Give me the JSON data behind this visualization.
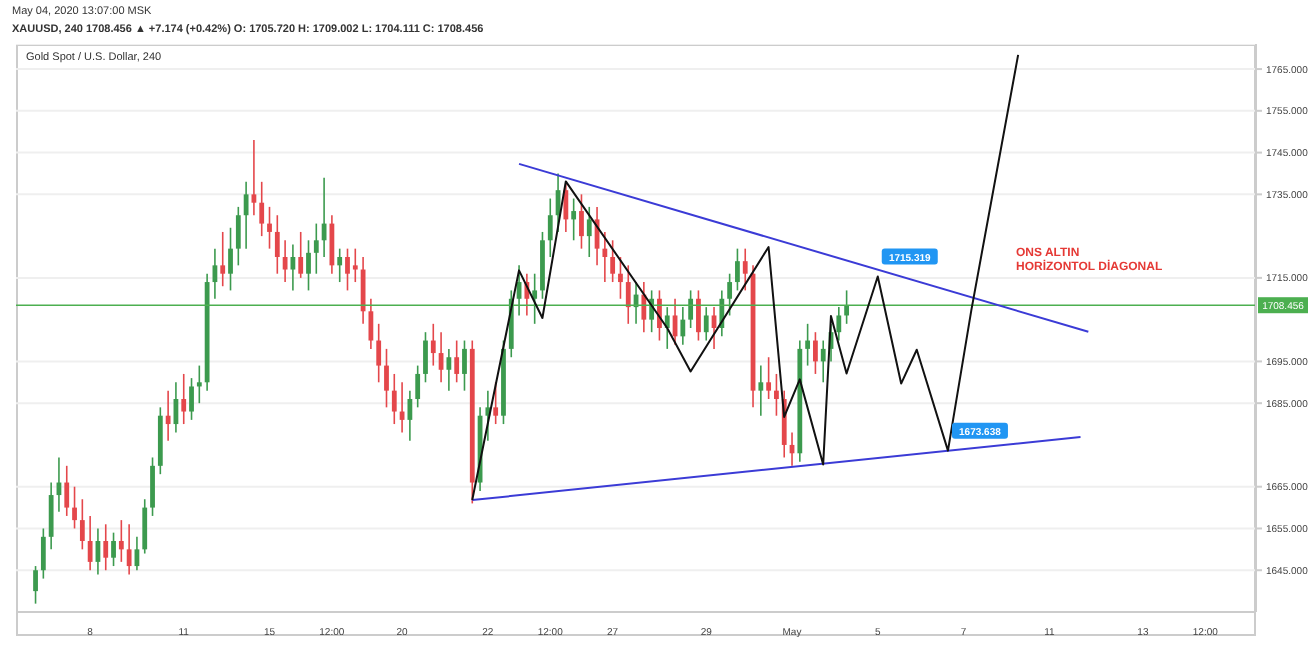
{
  "chart_data": {
    "type": "candlestick",
    "title": "Gold Spot / U.S. Dollar, 240",
    "annotations": [
      "May 04, 2020 13:07:00 MSK",
      "XAUUSD, 240 1708.456 ▲ +7.174 (+0.42%) O: 1705.720 H: 1709.002 L: 1704.111 C: 1708.456",
      "ONS ALTIN\nHORİZONTOL DİAGONAL",
      {
        "text": "1715.319",
        "y": 1715.319
      },
      {
        "text": "1673.638",
        "y": 1673.638
      }
    ],
    "categories": [
      null,
      null,
      null,
      null,
      null,
      null,
      null,
      null,
      null,
      "8",
      null,
      null,
      null,
      null,
      null,
      null,
      null,
      null,
      null,
      null,
      null,
      "11",
      null,
      null,
      null,
      null,
      null,
      null,
      null,
      null,
      null,
      null,
      "15",
      null,
      null,
      null,
      null,
      null,
      null,
      null,
      "12:00",
      null,
      null,
      null,
      null,
      null,
      null,
      null,
      null,
      "20",
      null,
      null,
      null,
      null,
      null,
      null,
      null,
      null,
      null,
      null,
      "22",
      null,
      null,
      null,
      null,
      null,
      null,
      null,
      "12:00",
      null,
      null,
      null,
      null,
      null,
      null,
      null,
      "27",
      null,
      null,
      null,
      null,
      null,
      null,
      null,
      null,
      null,
      null,
      null,
      "29",
      null,
      null,
      null,
      null,
      null,
      null,
      null,
      null,
      null,
      null,
      "May",
      null,
      null,
      null,
      null,
      null,
      null,
      null,
      null,
      null,
      null,
      "5",
      null,
      null,
      null,
      null,
      null,
      null,
      null,
      null,
      null,
      null,
      "7",
      null,
      null,
      null,
      null,
      null,
      null,
      null,
      null,
      null,
      null,
      "11",
      null,
      null,
      null,
      null,
      null,
      null,
      null,
      null,
      null,
      null,
      null,
      "13",
      null,
      null,
      null,
      null,
      null,
      null,
      null,
      "12:00",
      null,
      null,
      null,
      null,
      null,
      null
    ],
    "ohlc": [
      null,
      null,
      [
        1640,
        1646,
        1637,
        1645
      ],
      [
        1645,
        1655,
        1643,
        1653
      ],
      [
        1653,
        1666,
        1650,
        1663
      ],
      [
        1663,
        1672,
        1659,
        1666
      ],
      [
        1666,
        1670,
        1658,
        1660
      ],
      [
        1660,
        1665,
        1655,
        1657
      ],
      [
        1657,
        1662,
        1650,
        1652
      ],
      [
        1652,
        1658,
        1645,
        1647
      ],
      [
        1647,
        1655,
        1644,
        1652
      ],
      [
        1652,
        1656,
        1645,
        1648
      ],
      [
        1648,
        1654,
        1646,
        1652
      ],
      [
        1652,
        1657,
        1647,
        1650
      ],
      [
        1650,
        1656,
        1644,
        1646
      ],
      [
        1646,
        1653,
        1645,
        1650
      ],
      [
        1650,
        1662,
        1649,
        1660
      ],
      [
        1660,
        1672,
        1658,
        1670
      ],
      [
        1670,
        1684,
        1668,
        1682
      ],
      [
        1682,
        1688,
        1676,
        1680
      ],
      [
        1680,
        1690,
        1678,
        1686
      ],
      [
        1686,
        1692,
        1680,
        1683
      ],
      [
        1683,
        1691,
        1681,
        1689
      ],
      [
        1689,
        1694,
        1685,
        1690
      ],
      [
        1690,
        1716,
        1688,
        1714
      ],
      [
        1714,
        1722,
        1710,
        1718
      ],
      [
        1718,
        1726,
        1713,
        1716
      ],
      [
        1716,
        1727,
        1712,
        1722
      ],
      [
        1722,
        1732,
        1718,
        1730
      ],
      [
        1730,
        1738,
        1722,
        1735
      ],
      [
        1735,
        1748,
        1730,
        1733
      ],
      [
        1733,
        1738,
        1725,
        1728
      ],
      [
        1728,
        1732,
        1722,
        1726
      ],
      [
        1726,
        1730,
        1716,
        1720
      ],
      [
        1720,
        1724,
        1714,
        1717
      ],
      [
        1717,
        1723,
        1712,
        1720
      ],
      [
        1720,
        1726,
        1715,
        1716
      ],
      [
        1716,
        1724,
        1712,
        1721
      ],
      [
        1721,
        1728,
        1716,
        1724
      ],
      [
        1724,
        1739,
        1720,
        1728
      ],
      [
        1728,
        1730,
        1716,
        1718
      ],
      [
        1718,
        1722,
        1714,
        1720
      ],
      [
        1720,
        1722,
        1712,
        1716
      ],
      [
        1718,
        1722,
        1714,
        1717
      ],
      [
        1717,
        1720,
        1704,
        1707
      ],
      [
        1707,
        1710,
        1698,
        1700
      ],
      [
        1700,
        1704,
        1690,
        1694
      ],
      [
        1694,
        1698,
        1684,
        1688
      ],
      [
        1688,
        1692,
        1680,
        1683
      ],
      [
        1683,
        1690,
        1678,
        1681
      ],
      [
        1681,
        1688,
        1676,
        1686
      ],
      [
        1686,
        1694,
        1684,
        1692
      ],
      [
        1692,
        1702,
        1690,
        1700
      ],
      [
        1700,
        1704,
        1694,
        1697
      ],
      [
        1697,
        1702,
        1690,
        1693
      ],
      [
        1693,
        1698,
        1688,
        1696
      ],
      [
        1696,
        1700,
        1690,
        1692
      ],
      [
        1692,
        1700,
        1688,
        1698
      ],
      [
        1698,
        1700,
        1661,
        1666
      ],
      [
        1666,
        1684,
        1664,
        1682
      ],
      [
        1682,
        1688,
        1676,
        1684
      ],
      [
        1684,
        1690,
        1680,
        1682
      ],
      [
        1682,
        1700,
        1680,
        1698
      ],
      [
        1698,
        1712,
        1696,
        1710
      ],
      [
        1710,
        1718,
        1706,
        1714
      ],
      [
        1714,
        1716,
        1706,
        1710
      ],
      [
        1710,
        1716,
        1704,
        1712
      ],
      [
        1712,
        1726,
        1710,
        1724
      ],
      [
        1724,
        1734,
        1720,
        1730
      ],
      [
        1730,
        1740,
        1726,
        1736
      ],
      [
        1736,
        1738,
        1726,
        1729
      ],
      [
        1729,
        1734,
        1724,
        1731
      ],
      [
        1731,
        1735,
        1722,
        1725
      ],
      [
        1725,
        1732,
        1720,
        1729
      ],
      [
        1729,
        1732,
        1718,
        1722
      ],
      [
        1722,
        1726,
        1714,
        1720
      ],
      [
        1720,
        1724,
        1714,
        1716
      ],
      [
        1716,
        1720,
        1710,
        1714
      ],
      [
        1714,
        1718,
        1704,
        1708
      ],
      [
        1708,
        1714,
        1704,
        1711
      ],
      [
        1711,
        1714,
        1702,
        1705
      ],
      [
        1705,
        1712,
        1702,
        1710
      ],
      [
        1710,
        1712,
        1700,
        1703
      ],
      [
        1703,
        1708,
        1698,
        1706
      ],
      [
        1706,
        1710,
        1699,
        1701
      ],
      [
        1701,
        1708,
        1699,
        1705
      ],
      [
        1705,
        1712,
        1703,
        1710
      ],
      [
        1710,
        1712,
        1700,
        1702
      ],
      [
        1702,
        1708,
        1700,
        1706
      ],
      [
        1706,
        1708,
        1698,
        1703
      ],
      [
        1703,
        1712,
        1701,
        1710
      ],
      [
        1710,
        1716,
        1706,
        1714
      ],
      [
        1714,
        1722,
        1712,
        1719
      ],
      [
        1719,
        1722,
        1712,
        1716
      ],
      [
        1716,
        1718,
        1684,
        1688
      ],
      [
        1688,
        1694,
        1682,
        1690
      ],
      [
        1690,
        1696,
        1686,
        1688
      ],
      [
        1688,
        1692,
        1682,
        1686
      ],
      [
        1686,
        1688,
        1672,
        1675
      ],
      [
        1675,
        1678,
        1670,
        1673
      ],
      [
        1673,
        1700,
        1671,
        1698
      ],
      [
        1698,
        1704,
        1694,
        1700
      ],
      [
        1700,
        1702,
        1692,
        1695
      ],
      [
        1695,
        1700,
        1690,
        1698
      ],
      [
        1698,
        1704,
        1695,
        1702
      ],
      [
        1702,
        1708,
        1700,
        1706
      ],
      [
        1706,
        1712,
        1704,
        1708.456
      ],
      null,
      null,
      null,
      null,
      null,
      null,
      null,
      null,
      null,
      null,
      null,
      null,
      null,
      null,
      null,
      null,
      null,
      null,
      null,
      null,
      null,
      null,
      null,
      null,
      null,
      null,
      null,
      null,
      null,
      null,
      null,
      null,
      null,
      null,
      null,
      null,
      null,
      null,
      null,
      null,
      null,
      null,
      null,
      null,
      null,
      null,
      null,
      null,
      null,
      null,
      null,
      null
    ],
    "series": [
      {
        "type": "line",
        "color": "#3b3bd6",
        "values": [
          null,
          null,
          null,
          null,
          null,
          null,
          null,
          null,
          null,
          null,
          null,
          null,
          null,
          null,
          null,
          null,
          null,
          null,
          null,
          null,
          null,
          null,
          null,
          null,
          null,
          null,
          null,
          null,
          null,
          null,
          null,
          null,
          null,
          null,
          null,
          null,
          null,
          null,
          null,
          null,
          null,
          null,
          null,
          null,
          null,
          null,
          null,
          null,
          null,
          null,
          null,
          null,
          null,
          null,
          null,
          null,
          null,
          null,
          null,
          null,
          null,
          null,
          null,
          null,
          1742.3,
          null,
          null,
          null,
          null,
          null,
          null,
          null,
          null,
          null,
          null,
          null,
          null,
          null,
          null,
          null,
          null,
          null,
          null,
          null,
          null,
          null,
          null,
          null,
          null,
          null,
          null,
          null,
          null,
          null,
          null,
          null,
          null,
          null,
          null,
          null,
          null,
          null,
          null,
          null,
          null,
          null,
          null,
          null,
          null,
          null,
          null,
          null,
          null,
          null,
          null,
          null,
          null,
          null,
          null,
          null,
          null,
          null,
          null,
          null,
          null,
          null,
          null,
          null,
          null,
          null,
          null,
          null,
          null,
          null,
          null,
          null,
          null,
          1702.1,
          null,
          null,
          null,
          null,
          null,
          null,
          null,
          null,
          null,
          null,
          null,
          null,
          null,
          null,
          null,
          null,
          null,
          null,
          null,
          null,
          null
        ]
      },
      {
        "type": "line",
        "color": "#3b3bd6",
        "values": [
          null,
          null,
          null,
          null,
          null,
          null,
          null,
          null,
          null,
          null,
          null,
          null,
          null,
          null,
          null,
          null,
          null,
          null,
          null,
          null,
          null,
          null,
          null,
          null,
          null,
          null,
          null,
          null,
          null,
          null,
          null,
          null,
          null,
          null,
          null,
          null,
          null,
          null,
          null,
          null,
          null,
          null,
          null,
          null,
          null,
          null,
          null,
          null,
          null,
          null,
          null,
          null,
          null,
          null,
          null,
          null,
          null,
          null,
          1661.8,
          null,
          null,
          null,
          null,
          null,
          null,
          null,
          null,
          null,
          null,
          null,
          null,
          null,
          null,
          null,
          null,
          null,
          null,
          null,
          null,
          null,
          null,
          null,
          null,
          null,
          null,
          null,
          null,
          null,
          null,
          null,
          null,
          null,
          null,
          null,
          null,
          null,
          null,
          null,
          null,
          null,
          null,
          null,
          null,
          null,
          null,
          null,
          null,
          null,
          null,
          null,
          null,
          null,
          null,
          null,
          null,
          null,
          null,
          null,
          null,
          null,
          null,
          null,
          null,
          null,
          null,
          null,
          null,
          null,
          null,
          null,
          null,
          null,
          null,
          null,
          null,
          null,
          1676.9,
          null,
          null,
          null,
          null,
          null,
          null,
          null,
          null,
          null,
          null,
          null,
          null,
          null,
          null,
          null,
          null,
          null,
          null,
          null,
          null,
          null,
          null
        ]
      },
      {
        "type": "line",
        "color": "#111111",
        "values": [
          null,
          null,
          null,
          null,
          null,
          null,
          null,
          null,
          null,
          null,
          null,
          null,
          null,
          null,
          null,
          null,
          null,
          null,
          null,
          null,
          null,
          null,
          null,
          null,
          null,
          null,
          null,
          null,
          null,
          null,
          null,
          null,
          null,
          null,
          null,
          null,
          null,
          null,
          null,
          null,
          null,
          null,
          null,
          null,
          null,
          null,
          null,
          null,
          null,
          null,
          null,
          null,
          null,
          null,
          null,
          null,
          null,
          null,
          1661.8,
          null,
          null,
          null,
          null,
          null,
          1716.8,
          null,
          null,
          1705.4,
          null,
          null,
          1738.1,
          null,
          null,
          null,
          null,
          null,
          null,
          null,
          null,
          null,
          null,
          null,
          null,
          1703.0,
          null,
          null,
          1692.6,
          null,
          null,
          null,
          null,
          null,
          null,
          null,
          null,
          null,
          1722.4,
          null,
          1681.7,
          null,
          1690.7,
          null,
          null,
          1670.3,
          1705.9,
          null,
          1692.1,
          null,
          null,
          null,
          1715.319,
          null,
          null,
          1689.7,
          null,
          1697.8,
          null,
          null,
          null,
          1673.638,
          null,
          null,
          1707.3,
          null,
          null,
          null,
          null,
          null,
          1768.4,
          null,
          null,
          null,
          null,
          null,
          null,
          null,
          null,
          null,
          null,
          null,
          null,
          null,
          null,
          null,
          null,
          null,
          null,
          null,
          null,
          null,
          null,
          null,
          null,
          null,
          null,
          null,
          null,
          null,
          null
        ]
      }
    ],
    "ylim": [
      1635,
      1771
    ],
    "yticks": [
      {
        "value": 1645,
        "label": "1645.000"
      },
      {
        "value": 1655,
        "label": "1655.000"
      },
      {
        "value": 1665,
        "label": "1665.000"
      },
      {
        "value": 1685,
        "label": "1685.000"
      },
      {
        "value": 1695,
        "label": "1695.000"
      },
      {
        "value": 1715,
        "label": "1715.000"
      },
      {
        "value": 1735,
        "label": "1735.000"
      },
      {
        "value": 1745,
        "label": "1745.000"
      },
      {
        "value": 1755,
        "label": "1755.000"
      },
      {
        "value": 1765,
        "label": "1765.000"
      }
    ],
    "ref_lines": [
      {
        "axis": "y",
        "value": 1708.456,
        "label": "1708.456",
        "color": "#4caf50"
      }
    ],
    "grid": true,
    "marker": "none",
    "line_style": "solid"
  }
}
